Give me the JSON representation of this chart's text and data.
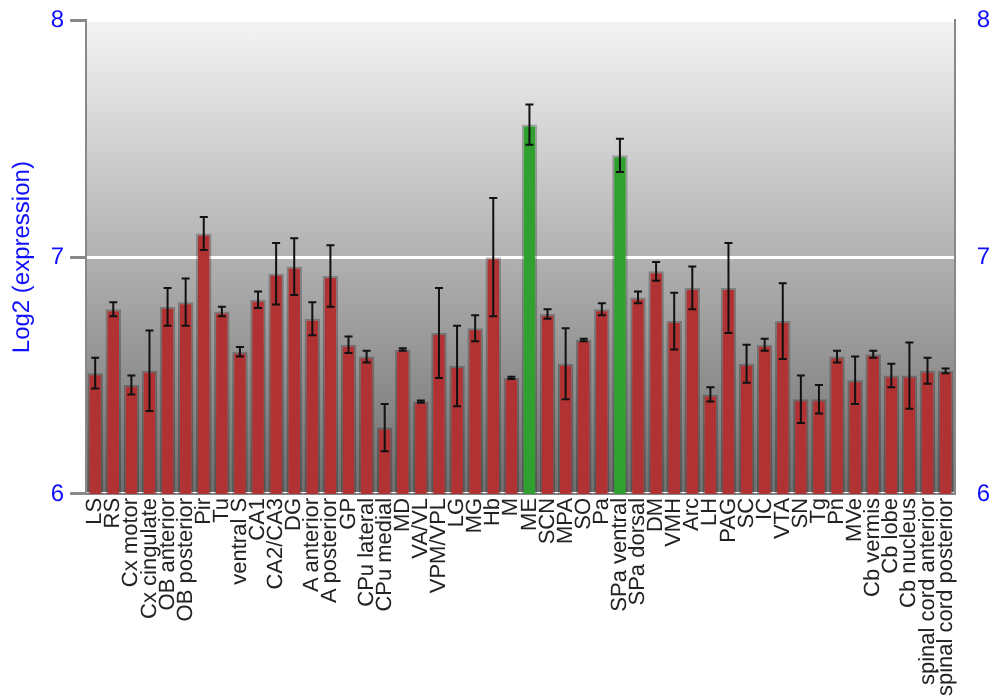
{
  "chart_data": {
    "type": "bar",
    "ylabel": "Log2 (expression)",
    "categories": [
      "LS",
      "RS",
      "Cx motor",
      "Cx cingulate",
      "OB anterior",
      "OB posterior",
      "Pir",
      "Tu",
      "ventral S",
      "CA1",
      "CA2/CA3",
      "DG",
      "A anterior",
      "A posterior",
      "GP",
      "CPu lateral",
      "CPu medial",
      "MD",
      "VA/VL",
      "VPM/VPL",
      "LG",
      "MG",
      "Hb",
      "M",
      "ME",
      "SCN",
      "MPA",
      "SO",
      "Pa",
      "SPa ventral",
      "SPa dorsal",
      "DM",
      "VMH",
      "Arc",
      "LH",
      "PAG",
      "SC",
      "IC",
      "VTA",
      "SN",
      "Tg",
      "Pn",
      "MVe",
      "Cb vermis",
      "Cb lobe",
      "Cb nucleus",
      "spinal cord anterior",
      "spinal cord posterior"
    ],
    "values": [
      6.51,
      6.78,
      6.46,
      6.52,
      6.79,
      6.81,
      7.1,
      6.77,
      6.6,
      6.82,
      6.93,
      6.96,
      6.74,
      6.92,
      6.63,
      6.58,
      6.28,
      6.61,
      6.39,
      6.68,
      6.54,
      6.7,
      7.0,
      6.49,
      7.56,
      6.76,
      6.55,
      6.65,
      6.78,
      7.43,
      6.83,
      6.94,
      6.73,
      6.87,
      6.42,
      6.87,
      6.55,
      6.63,
      6.73,
      6.4,
      6.4,
      6.58,
      6.48,
      6.59,
      6.5,
      6.5,
      6.52,
      6.52
    ],
    "errors": [
      0.065,
      0.03,
      0.04,
      0.17,
      0.08,
      0.1,
      0.07,
      0.02,
      0.02,
      0.035,
      0.13,
      0.12,
      0.07,
      0.13,
      0.035,
      0.025,
      0.1,
      0.005,
      0.005,
      0.19,
      0.17,
      0.055,
      0.25,
      0.005,
      0.085,
      0.02,
      0.15,
      0.005,
      0.025,
      0.07,
      0.025,
      0.04,
      0.12,
      0.09,
      0.03,
      0.19,
      0.08,
      0.025,
      0.16,
      0.1,
      0.06,
      0.025,
      0.1,
      0.015,
      0.05,
      0.14,
      0.055,
      0.01
    ],
    "colors": [
      "#b03232",
      "#b03232",
      "#b03232",
      "#b03232",
      "#b03232",
      "#b03232",
      "#b03232",
      "#b03232",
      "#b03232",
      "#b03232",
      "#b03232",
      "#b03232",
      "#b03232",
      "#b03232",
      "#b03232",
      "#b03232",
      "#b03232",
      "#b03232",
      "#b03232",
      "#b03232",
      "#b03232",
      "#b03232",
      "#b03232",
      "#b03232",
      "#30a030",
      "#b03232",
      "#b03232",
      "#b03232",
      "#b03232",
      "#30a030",
      "#b03232",
      "#b03232",
      "#b03232",
      "#b03232",
      "#b03232",
      "#b03232",
      "#b03232",
      "#b03232",
      "#b03232",
      "#b03232",
      "#b03232",
      "#b03232",
      "#b03232",
      "#b03232",
      "#b03232",
      "#b03232",
      "#b03232",
      "#b03232"
    ],
    "ylim": [
      6,
      8
    ],
    "yticks": [
      6,
      7,
      8
    ],
    "y2lim": [
      6,
      8
    ],
    "y2ticks": [
      6,
      7,
      8
    ],
    "grid": "y",
    "legend": false
  }
}
